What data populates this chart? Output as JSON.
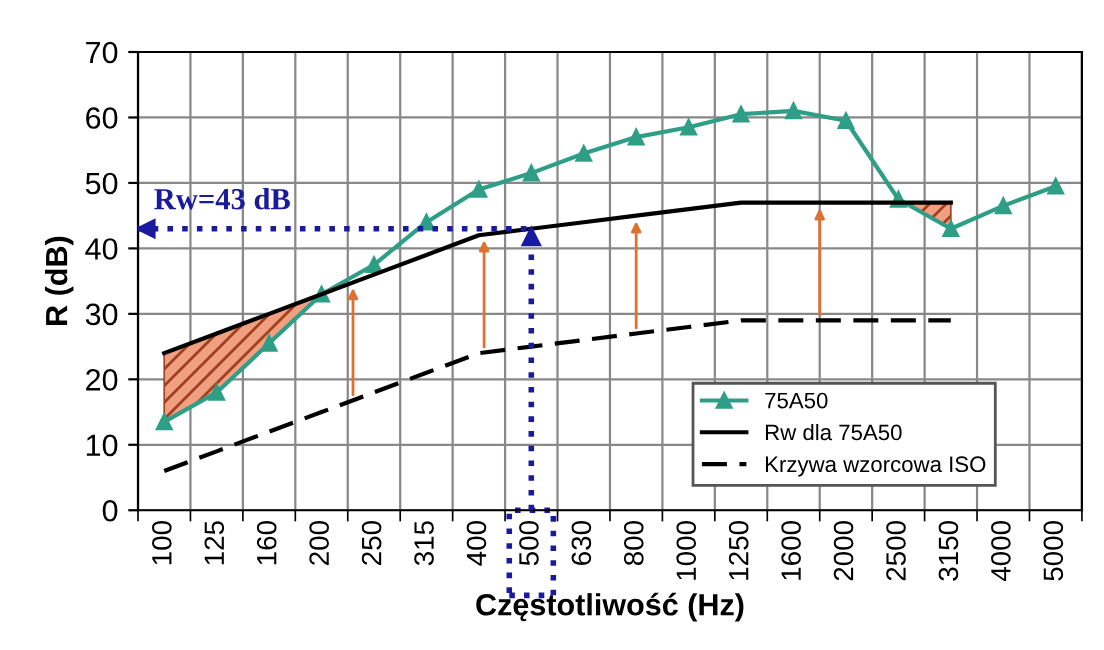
{
  "chart_data": {
    "type": "line",
    "xlabel": "Częstotliwość (Hz)",
    "ylabel": "R (dB)",
    "categories": [
      "100",
      "125",
      "160",
      "200",
      "250",
      "315",
      "400",
      "500",
      "630",
      "800",
      "1000",
      "1250",
      "1600",
      "2000",
      "2500",
      "3150",
      "4000",
      "5000"
    ],
    "series": [
      {
        "name": "75A50",
        "color": "#2e9e86",
        "marker": "triangle",
        "line_style": "solid",
        "values": [
          13.5,
          18,
          25.5,
          33,
          37.5,
          44,
          49,
          51.5,
          54.5,
          57,
          58.5,
          60.5,
          61,
          59.5,
          47.5,
          43,
          46.5,
          49.5
        ]
      },
      {
        "name": "Rw dla 75A50",
        "color": "#000000",
        "marker": "none",
        "line_style": "solid",
        "values": [
          24,
          27,
          30,
          33,
          36,
          39,
          42,
          43,
          44,
          45,
          46,
          47,
          47,
          47,
          47,
          47,
          null,
          null
        ]
      },
      {
        "name": "Krzywa wzorcowa ISO",
        "color": "#000000",
        "marker": "none",
        "line_style": "dashed",
        "values": [
          6,
          9,
          12,
          15,
          18,
          21,
          24,
          25,
          26,
          27,
          28,
          29,
          29,
          29,
          29,
          29,
          null,
          null
        ]
      }
    ],
    "ylim": [
      0,
      70
    ],
    "yticks": [
      0,
      10,
      20,
      30,
      40,
      50,
      60,
      70
    ],
    "grid": true,
    "legend": "bottom right",
    "ref_lines": [
      {
        "axis": "y",
        "value": 43,
        "label": "Rw=43 dB",
        "color": "#1a1aa0",
        "line_style": "dotted"
      },
      {
        "axis": "x",
        "value": "500",
        "color": "#1a1aa0",
        "line_style": "dotted"
      }
    ]
  }
}
